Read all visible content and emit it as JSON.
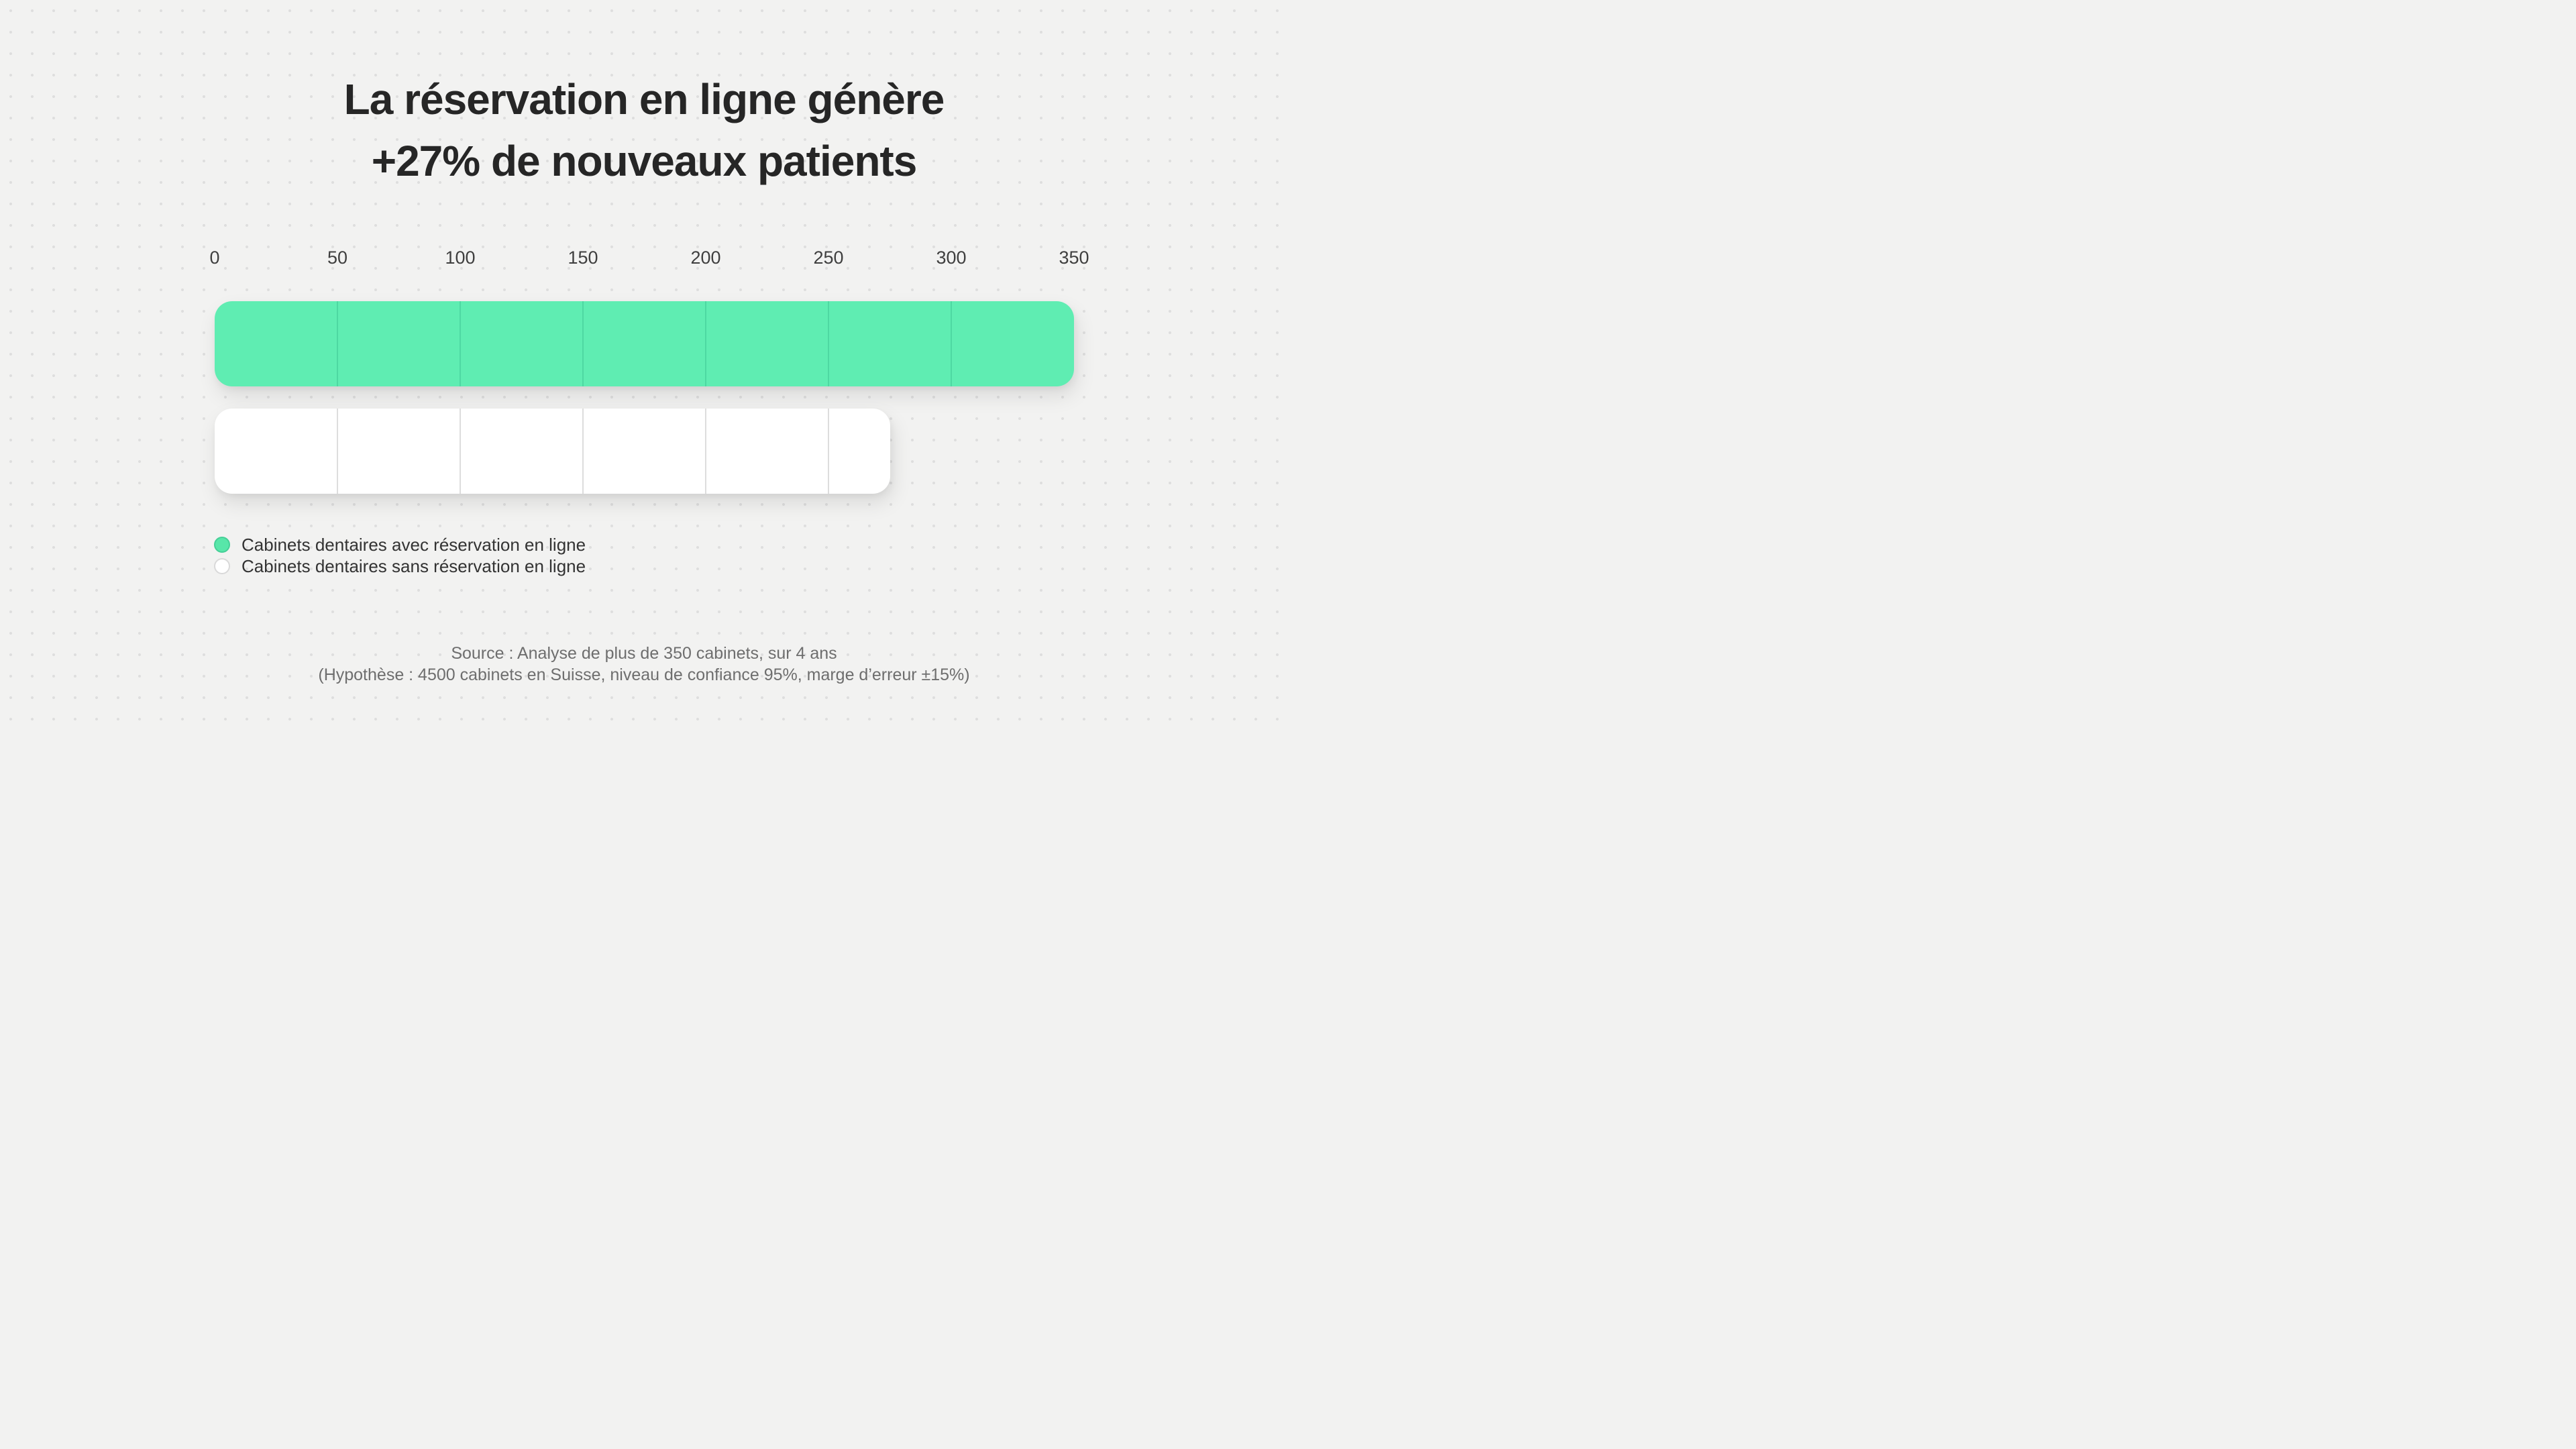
{
  "title": {
    "line1": "La réservation en ligne génère",
    "line2": "+27% de nouveaux patients"
  },
  "chart_data": {
    "type": "bar",
    "orientation": "horizontal",
    "title": "La réservation en ligne génère +27% de nouveaux patients",
    "xlim": [
      0,
      350
    ],
    "x_ticks": [
      "0",
      "50",
      "100",
      "150",
      "200",
      "250",
      "300",
      "350"
    ],
    "segment_size": 50,
    "grid": "off (segment divider lines drawn inside bars every 50 units)",
    "legend_position": "bottom-left under chart",
    "series": [
      {
        "name": "Cabinets dentaires avec réservation en ligne",
        "value": 350,
        "bar_color": "#5FEDB2",
        "divider_color": "#4ED8A2"
      },
      {
        "name": "Cabinets dentaires sans réservation en ligne",
        "value": 275,
        "bar_color": "#FFFFFF",
        "divider_color": "#DDDDDD"
      }
    ]
  },
  "legend": {
    "items": [
      {
        "label": "Cabinets dentaires avec réservation en ligne",
        "swatch_color": "#58E6A9",
        "swatch_border": "#45CF97"
      },
      {
        "label": "Cabinets dentaires sans réservation en ligne",
        "swatch_color": "#FFFFFF",
        "swatch_border": "#D9D9D9"
      }
    ]
  },
  "source": {
    "line1": "Source : Analyse de plus de 350 cabinets, sur 4 ans",
    "line2": "(Hypothèse : 4500 cabinets en Suisse, niveau de confiance 95%, marge d’erreur ±15%)"
  },
  "colors": {
    "background": "#F2F2F1",
    "dot_grid": "#DEDEDE",
    "title_text": "#262626",
    "axis_text": "#3F3F3F",
    "legend_text": "#333333",
    "source_text": "#6E6E6E"
  }
}
